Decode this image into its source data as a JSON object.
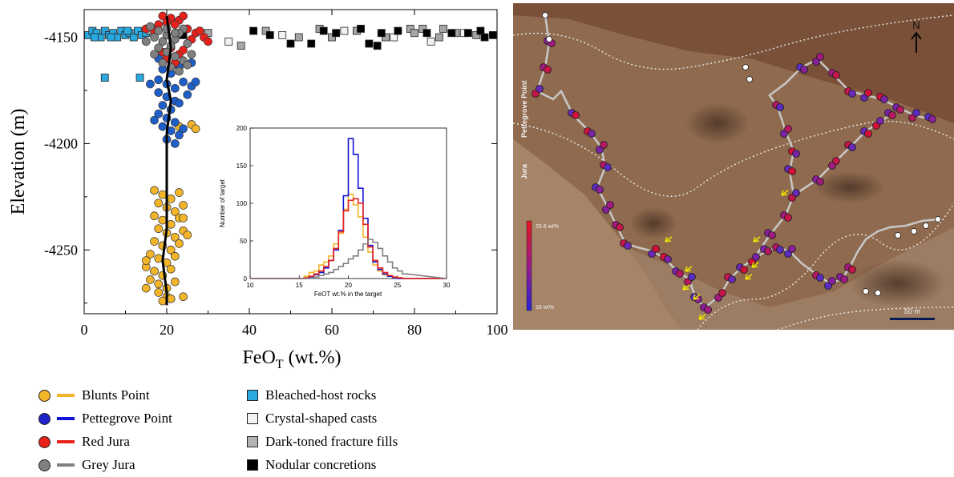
{
  "chart_data": [
    {
      "type": "scatter",
      "xlabel_main": "FeO",
      "xlabel_sub": "T",
      "xlabel_unit": " (wt.%)",
      "ylabel": "Elevation (m)",
      "xlim": [
        0,
        100
      ],
      "ylim": [
        -4280,
        -4137
      ],
      "xticks": [
        0,
        20,
        40,
        60,
        80,
        100
      ],
      "yticks": [
        -4150,
        -4200,
        -4250
      ],
      "grid": false,
      "series": [
        {
          "name": "Blunts Point",
          "color": "#f2b52a",
          "points": [
            [
              17,
              -4222
            ],
            [
              19,
              -4224
            ],
            [
              21,
              -4226
            ],
            [
              23,
              -4223
            ],
            [
              18,
              -4228
            ],
            [
              20,
              -4230
            ],
            [
              22,
              -4232
            ],
            [
              24,
              -4229
            ],
            [
              17,
              -4234
            ],
            [
              19,
              -4236
            ],
            [
              21,
              -4238
            ],
            [
              23,
              -4235
            ],
            [
              18,
              -4240
            ],
            [
              20,
              -4242
            ],
            [
              22,
              -4244
            ],
            [
              24,
              -4241
            ],
            [
              17,
              -4246
            ],
            [
              19,
              -4248
            ],
            [
              21,
              -4250
            ],
            [
              23,
              -4247
            ],
            [
              16,
              -4252
            ],
            [
              18,
              -4254
            ],
            [
              20,
              -4256
            ],
            [
              22,
              -4253
            ],
            [
              15,
              -4258
            ],
            [
              17,
              -4260
            ],
            [
              19,
              -4262
            ],
            [
              21,
              -4259
            ],
            [
              16,
              -4264
            ],
            [
              18,
              -4266
            ],
            [
              20,
              -4268
            ],
            [
              22,
              -4265
            ],
            [
              18,
              -4270
            ],
            [
              20,
              -4272
            ],
            [
              19,
              -4274
            ],
            [
              21,
              -4273
            ],
            [
              15,
              -4255
            ],
            [
              25,
              -4243
            ],
            [
              24,
              -4235
            ],
            [
              26,
              -4191
            ],
            [
              27,
              -4193
            ],
            [
              23,
              -4192
            ],
            [
              15,
              -4268
            ],
            [
              24,
              -4272
            ]
          ]
        },
        {
          "name": "Pettegrove Point",
          "color": "#1e5fc9",
          "points": [
            [
              19,
              -4165
            ],
            [
              21,
              -4167
            ],
            [
              23,
              -4164
            ],
            [
              18,
              -4170
            ],
            [
              20,
              -4172
            ],
            [
              22,
              -4174
            ],
            [
              24,
              -4171
            ],
            [
              26,
              -4173
            ],
            [
              18,
              -4176
            ],
            [
              20,
              -4178
            ],
            [
              22,
              -4180
            ],
            [
              19,
              -4182
            ],
            [
              21,
              -4184
            ],
            [
              23,
              -4181
            ],
            [
              18,
              -4186
            ],
            [
              20,
              -4188
            ],
            [
              22,
              -4190
            ],
            [
              19,
              -4192
            ],
            [
              21,
              -4194
            ],
            [
              23,
              -4196
            ],
            [
              20,
              -4198
            ],
            [
              22,
              -4200
            ],
            [
              24,
              -4193
            ],
            [
              17,
              -4189
            ],
            [
              25,
              -4177
            ],
            [
              27,
              -4171
            ],
            [
              16,
              -4172
            ],
            [
              18,
              -4160
            ],
            [
              22,
              -4162
            ],
            [
              26,
              -4162
            ]
          ]
        },
        {
          "name": "Red Jura",
          "color": "#e8221b",
          "points": [
            [
              19,
              -4140
            ],
            [
              21,
              -4141
            ],
            [
              23,
              -4142
            ],
            [
              20,
              -4143
            ],
            [
              22,
              -4144
            ],
            [
              24,
              -4140
            ],
            [
              18,
              -4144
            ],
            [
              25,
              -4146
            ],
            [
              27,
              -4148
            ],
            [
              29,
              -4150
            ],
            [
              30,
              -4152
            ],
            [
              26,
              -4151
            ],
            [
              28,
              -4147
            ],
            [
              17,
              -4147
            ],
            [
              15,
              -4146
            ],
            [
              21,
              -4155
            ],
            [
              23,
              -4158
            ],
            [
              20,
              -4160
            ],
            [
              22,
              -4162
            ],
            [
              24,
              -4156
            ],
            [
              19,
              -4157
            ]
          ]
        },
        {
          "name": "Grey Jura",
          "color": "#808080",
          "points": [
            [
              16,
              -4145
            ],
            [
              18,
              -4147
            ],
            [
              20,
              -4149
            ],
            [
              22,
              -4151
            ],
            [
              24,
              -4146
            ],
            [
              17,
              -4150
            ],
            [
              19,
              -4152
            ],
            [
              21,
              -4154
            ],
            [
              23,
              -4148
            ],
            [
              25,
              -4153
            ],
            [
              15,
              -4152
            ],
            [
              18,
              -4155
            ],
            [
              20,
              -4157
            ],
            [
              22,
              -4159
            ],
            [
              24,
              -4161
            ],
            [
              19,
              -4162
            ],
            [
              21,
              -4164
            ],
            [
              23,
              -4166
            ],
            [
              25,
              -4163
            ],
            [
              17,
              -4158
            ],
            [
              26,
              -4158
            ],
            [
              20,
              -4146
            ],
            [
              22,
              -4148
            ]
          ]
        }
      ],
      "trend_line": [
        [
          20,
          -4140
        ],
        [
          21,
          -4155
        ],
        [
          20,
          -4170
        ],
        [
          21,
          -4180
        ],
        [
          20,
          -4195
        ],
        [
          20,
          -4210
        ],
        [
          20,
          -4225
        ],
        [
          20,
          -4240
        ],
        [
          19,
          -4255
        ],
        [
          20,
          -4270
        ],
        [
          20,
          -4276
        ]
      ],
      "square_series": [
        {
          "name": "Bleached-host rocks",
          "color": "#29a9e0",
          "points": [
            [
              1,
              -4149
            ],
            [
              2,
              -4147
            ],
            [
              3,
              -4148
            ],
            [
              4,
              -4150
            ],
            [
              5,
              -4147
            ],
            [
              6,
              -4149
            ],
            [
              7,
              -4148
            ],
            [
              8,
              -4150
            ],
            [
              9,
              -4147
            ],
            [
              10,
              -4149
            ],
            [
              11,
              -4148
            ],
            [
              12,
              -4150
            ],
            [
              13,
              -4147
            ],
            [
              14,
              -4149
            ],
            [
              15,
              -4148
            ],
            [
              2.5,
              -4150
            ],
            [
              6.5,
              -4150
            ],
            [
              10.5,
              -4147
            ],
            [
              5,
              -4169
            ],
            [
              13.5,
              -4169
            ]
          ]
        },
        {
          "name": "Crystal-shaped casts",
          "color": "#f2f2f2",
          "points": [
            [
              35,
              -4152
            ],
            [
              48,
              -4149
            ],
            [
              63,
              -4147
            ],
            [
              75,
              -4150
            ],
            [
              84,
              -4152
            ],
            [
              92,
              -4148
            ]
          ]
        },
        {
          "name": "Dark-toned fracture fills",
          "color": "#a6a6a6",
          "points": [
            [
              16,
              -4147
            ],
            [
              30,
              -4148
            ],
            [
              38,
              -4154
            ],
            [
              44,
              -4147
            ],
            [
              52,
              -4150
            ],
            [
              57,
              -4146
            ],
            [
              60,
              -4150
            ],
            [
              66,
              -4147
            ],
            [
              73,
              -4150
            ],
            [
              79,
              -4146
            ],
            [
              80,
              -4148
            ],
            [
              82,
              -4146
            ],
            [
              86,
              -4150
            ],
            [
              87,
              -4146
            ],
            [
              90,
              -4148
            ],
            [
              95,
              -4149
            ]
          ]
        },
        {
          "name": "Nodular concretions",
          "color": "#000000",
          "points": [
            [
              24,
              -4149
            ],
            [
              41,
              -4147
            ],
            [
              45,
              -4149
            ],
            [
              50,
              -4153
            ],
            [
              55,
              -4153
            ],
            [
              58,
              -4147
            ],
            [
              61,
              -4148
            ],
            [
              67,
              -4146
            ],
            [
              69,
              -4153
            ],
            [
              71,
              -4154
            ],
            [
              72,
              -4148
            ],
            [
              76,
              -4147
            ],
            [
              83,
              -4148
            ],
            [
              89,
              -4148
            ],
            [
              93,
              -4148
            ],
            [
              96,
              -4147
            ],
            [
              97,
              -4150
            ],
            [
              99,
              -4149
            ]
          ]
        }
      ]
    },
    {
      "type": "line",
      "subtype": "histogram",
      "xlabel": "FeOT wt.% in the target",
      "ylabel": "Number of target",
      "xlim": [
        10,
        30
      ],
      "ylim": [
        0,
        200
      ],
      "xticks": [
        10,
        15,
        20,
        25,
        30
      ],
      "yticks": [
        0,
        50,
        100,
        150,
        200
      ],
      "bin_edges": [
        15,
        15.5,
        16,
        16.5,
        17,
        17.5,
        18,
        18.5,
        19,
        19.5,
        20,
        20.5,
        21,
        21.5,
        22,
        22.5,
        23,
        23.5,
        24,
        24.5,
        25,
        25.5,
        26
      ],
      "series": [
        {
          "name": "Blunts Point",
          "color": "#f2b52a",
          "values": [
            0,
            3,
            8,
            10,
            18,
            22,
            30,
            46,
            60,
            92,
            112,
            98,
            82,
            55,
            35,
            18,
            10,
            5,
            3,
            1,
            1,
            0
          ]
        },
        {
          "name": "Pettegrove Point",
          "color": "#1414d8",
          "values": [
            0,
            0,
            2,
            5,
            8,
            14,
            24,
            38,
            64,
            110,
            186,
            165,
            120,
            80,
            44,
            22,
            12,
            6,
            3,
            1,
            0,
            0
          ]
        },
        {
          "name": "Red Jura",
          "color": "#e8221b",
          "values": [
            0,
            1,
            3,
            6,
            10,
            16,
            24,
            40,
            62,
            90,
            104,
            106,
            100,
            72,
            42,
            24,
            14,
            8,
            4,
            2,
            1,
            0
          ]
        },
        {
          "name": "Grey Jura",
          "color": "#808080",
          "values": [
            0,
            0,
            0,
            2,
            4,
            6,
            8,
            12,
            16,
            20,
            26,
            30,
            38,
            46,
            52,
            48,
            40,
            30,
            22,
            14,
            10,
            6
          ]
        }
      ]
    }
  ],
  "map": {
    "north_label": "N",
    "label_pettegrove": "Pettegrove Point",
    "label_jura": "Jura",
    "colorbar_max": "26.6 wt%",
    "colorbar_min": "16 wt%",
    "scale_label": "50 m"
  },
  "legend": {
    "items": [
      {
        "label": "Blunts Point",
        "dot_color": "#f2b52a",
        "line_color": "#f2b52a"
      },
      {
        "label": "Pettegrove Point",
        "dot_color": "#1e22c9",
        "line_color": "#1414d8"
      },
      {
        "label": "Red Jura",
        "dot_color": "#e8221b",
        "line_color": "#e8221b"
      },
      {
        "label": "Grey Jura",
        "dot_color": "#808080",
        "line_color": "#808080"
      }
    ],
    "squares": [
      {
        "label": "Bleached-host rocks",
        "color": "#29a9e0"
      },
      {
        "label": "Crystal-shaped casts",
        "color": "#f2f2f2"
      },
      {
        "label": "Dark-toned fracture fills",
        "color": "#b3b3b3"
      },
      {
        "label": "Nodular concretions",
        "color": "#000000"
      }
    ]
  }
}
